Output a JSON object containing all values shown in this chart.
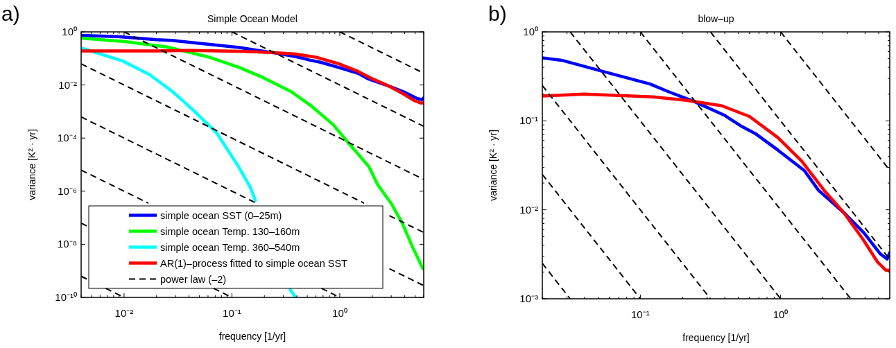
{
  "chart_data": [
    {
      "type": "line",
      "title": "Simple Ocean Model",
      "xlabel": "frequency [1/yr]",
      "ylabel": "variance [K² · yr]",
      "annotations": [
        "a)"
      ],
      "log": "xy",
      "legend": "bottom left",
      "xlim": [
        0.004,
        6
      ],
      "ylim": [
        1e-10,
        1
      ],
      "xticks": [
        {
          "value": 0.004,
          "label": null
        },
        {
          "value": 0.005,
          "label": null
        },
        {
          "value": 0.006,
          "label": null
        },
        {
          "value": 0.007,
          "label": null
        },
        {
          "value": 0.008,
          "label": null
        },
        {
          "value": 0.009,
          "label": null
        },
        {
          "value": 0.01,
          "label": "10⁻²"
        },
        {
          "value": 0.02,
          "label": null
        },
        {
          "value": 0.03,
          "label": null
        },
        {
          "value": 0.04,
          "label": null
        },
        {
          "value": 0.05,
          "label": null
        },
        {
          "value": 0.06,
          "label": null
        },
        {
          "value": 0.07,
          "label": null
        },
        {
          "value": 0.08,
          "label": null
        },
        {
          "value": 0.09,
          "label": null
        },
        {
          "value": 0.1,
          "label": "10⁻¹"
        },
        {
          "value": 0.2,
          "label": null
        },
        {
          "value": 0.3,
          "label": null
        },
        {
          "value": 0.4,
          "label": null
        },
        {
          "value": 0.5,
          "label": null
        },
        {
          "value": 0.6,
          "label": null
        },
        {
          "value": 0.7,
          "label": null
        },
        {
          "value": 0.8,
          "label": null
        },
        {
          "value": 0.9,
          "label": null
        },
        {
          "value": 1,
          "label": "10⁰"
        },
        {
          "value": 2,
          "label": null
        },
        {
          "value": 3,
          "label": null
        },
        {
          "value": 4,
          "label": null
        },
        {
          "value": 5,
          "label": null
        },
        {
          "value": 6,
          "label": null
        }
      ],
      "yticks": [
        {
          "value": 1e-10,
          "label": "10⁻¹⁰"
        },
        {
          "value": 1e-08,
          "label": "10⁻⁸"
        },
        {
          "value": 1e-06,
          "label": "10⁻⁶"
        },
        {
          "value": 0.0001,
          "label": "10⁻⁴"
        },
        {
          "value": 0.01,
          "label": "10⁻²"
        },
        {
          "value": 1,
          "label": "10⁰"
        }
      ],
      "series": [
        {
          "name": "simple ocean SST (0–25m)",
          "color": "#0000ff",
          "x": [
            0.004,
            0.0091,
            0.02,
            0.0275,
            0.0537,
            0.117,
            0.162,
            0.24,
            0.4,
            0.525,
            0.66,
            0.955,
            1.48,
            1.86,
            2.82,
            3.89,
            5.13,
            5.75,
            6
          ],
          "values": [
            0.74,
            0.66,
            0.51,
            0.48,
            0.36,
            0.26,
            0.21,
            0.166,
            0.115,
            0.087,
            0.072,
            0.047,
            0.0275,
            0.0166,
            0.0093,
            0.0056,
            0.0032,
            0.0028,
            0.0033
          ]
        },
        {
          "name": "simple ocean Temp. 130–160m",
          "color": "#00ff00",
          "x": [
            0.004,
            0.0102,
            0.025,
            0.06,
            0.115,
            0.195,
            0.355,
            0.537,
            0.87,
            1.23,
            1.86,
            2.24,
            3.02,
            3.8,
            4.79,
            5.9
          ],
          "values": [
            0.58,
            0.43,
            0.27,
            0.115,
            0.047,
            0.019,
            0.0056,
            0.0017,
            0.00032,
            5.9e-05,
            8.5e-06,
            1.8e-06,
            3.3e-07,
            6.2e-08,
            7.1e-09,
            1.2e-09
          ]
        },
        {
          "name": "simple ocean Temp. 360–540m",
          "color": "#00ffff",
          "x": [
            0.004,
            0.0098,
            0.0174,
            0.0282,
            0.0447,
            0.0724,
            0.115,
            0.148,
            0.165,
            0.25,
            0.347,
            0.39
          ],
          "values": [
            0.25,
            0.079,
            0.024,
            0.0056,
            0.00105,
            0.000155,
            8.5e-06,
            1.4e-06,
            4.5e-07,
            null,
            1.95e-10,
            1e-10
          ]
        },
        {
          "name": "AR(1)–process fitted to simple ocean SST",
          "color": "#ff0000",
          "x": [
            0.004,
            0.01,
            0.02,
            0.04,
            0.123,
            0.214,
            0.38,
            0.6,
            0.955,
            1.41,
            2.04,
            2.82,
            3.89,
            4.9,
            5.62,
            6
          ],
          "values": [
            0.19,
            0.19,
            0.19,
            0.2,
            0.186,
            0.17,
            0.148,
            0.112,
            0.065,
            0.0355,
            0.0166,
            0.0093,
            0.0046,
            0.0026,
            0.0021,
            0.0021
          ]
        },
        {
          "name": "power law (–2)",
          "color": "#000000",
          "line_style": "dashed",
          "x": [
            1,
            6
          ],
          "values": [
            1,
            0.0278
          ]
        },
        {
          "color": "#000000",
          "line_style": "dashed",
          "x": [
            0.1,
            6
          ],
          "values": [
            1,
            0.000278
          ]
        },
        {
          "color": "#000000",
          "line_style": "dashed",
          "x": [
            0.01,
            6
          ],
          "values": [
            1,
            2.78e-06
          ]
        },
        {
          "color": "#000000",
          "line_style": "dashed",
          "x": [
            0.004,
            1.68,
            2.3,
            2.884,
            6
          ],
          "values": [
            0.0625,
            3.55e-07,
            null,
            1.2e-07,
            2.78e-08
          ]
        },
        {
          "color": "#000000",
          "line_style": "dashed",
          "x": [
            0.004,
            0.168,
            1,
            2.884,
            6
          ],
          "values": [
            0.000625,
            3.55e-07,
            null,
            1.2e-09,
            2.78e-10
          ]
        },
        {
          "color": "#000000",
          "line_style": "dashed",
          "x": [
            0.004,
            0.0168,
            0.2,
            0.676,
            1
          ],
          "values": [
            6.25e-06,
            3.55e-07,
            null,
            2.19e-10,
            1e-10
          ]
        },
        {
          "color": "#000000",
          "line_style": "dashed",
          "x": [
            0.004,
            0.0048,
            0.02,
            0.0676,
            0.1
          ],
          "values": [
            6.25e-08,
            4.34e-08,
            null,
            2.19e-10,
            1e-10
          ]
        },
        {
          "color": "#000000",
          "line_style": "dashed",
          "x": [
            0.004,
            0.0048,
            0.0055,
            0.00676,
            0.01
          ],
          "values": [
            6.25e-10,
            4.34e-10,
            null,
            2.19e-10,
            1e-10
          ]
        }
      ]
    },
    {
      "type": "line",
      "title": "blow–up",
      "xlabel": "frequency [1/yr]",
      "ylabel": "variance [K² · yr]",
      "annotations": [
        "b)"
      ],
      "log": "xy",
      "xlim": [
        0.02,
        6
      ],
      "ylim": [
        0.001,
        1
      ],
      "xticks": [
        {
          "value": 0.02,
          "label": null
        },
        {
          "value": 0.03,
          "label": null
        },
        {
          "value": 0.04,
          "label": null
        },
        {
          "value": 0.05,
          "label": null
        },
        {
          "value": 0.06,
          "label": null
        },
        {
          "value": 0.07,
          "label": null
        },
        {
          "value": 0.08,
          "label": null
        },
        {
          "value": 0.09,
          "label": null
        },
        {
          "value": 0.1,
          "label": "10⁻¹"
        },
        {
          "value": 0.2,
          "label": null
        },
        {
          "value": 0.3,
          "label": null
        },
        {
          "value": 0.4,
          "label": null
        },
        {
          "value": 0.5,
          "label": null
        },
        {
          "value": 0.6,
          "label": null
        },
        {
          "value": 0.7,
          "label": null
        },
        {
          "value": 0.8,
          "label": null
        },
        {
          "value": 0.9,
          "label": null
        },
        {
          "value": 1,
          "label": "10⁰"
        },
        {
          "value": 2,
          "label": null
        },
        {
          "value": 3,
          "label": null
        },
        {
          "value": 4,
          "label": null
        },
        {
          "value": 5,
          "label": null
        },
        {
          "value": 6,
          "label": null
        }
      ],
      "yticks": [
        {
          "value": 0.001,
          "label": "10⁻³"
        },
        {
          "value": 0.002,
          "label": null
        },
        {
          "value": 0.003,
          "label": null
        },
        {
          "value": 0.004,
          "label": null
        },
        {
          "value": 0.005,
          "label": null
        },
        {
          "value": 0.006,
          "label": null
        },
        {
          "value": 0.007,
          "label": null
        },
        {
          "value": 0.008,
          "label": null
        },
        {
          "value": 0.009,
          "label": null
        },
        {
          "value": 0.01,
          "label": "10⁻²"
        },
        {
          "value": 0.02,
          "label": null
        },
        {
          "value": 0.03,
          "label": null
        },
        {
          "value": 0.04,
          "label": null
        },
        {
          "value": 0.05,
          "label": null
        },
        {
          "value": 0.06,
          "label": null
        },
        {
          "value": 0.07,
          "label": null
        },
        {
          "value": 0.08,
          "label": null
        },
        {
          "value": 0.09,
          "label": null
        },
        {
          "value": 0.1,
          "label": "10⁻¹"
        },
        {
          "value": 0.2,
          "label": null
        },
        {
          "value": 0.3,
          "label": null
        },
        {
          "value": 0.4,
          "label": null
        },
        {
          "value": 0.5,
          "label": null
        },
        {
          "value": 0.6,
          "label": null
        },
        {
          "value": 0.7,
          "label": null
        },
        {
          "value": 0.8,
          "label": null
        },
        {
          "value": 0.9,
          "label": null
        },
        {
          "value": 1,
          "label": "10⁰"
        }
      ],
      "series": [
        {
          "color": "#0000ff",
          "x": [
            0.02,
            0.0275,
            0.0537,
            0.117,
            0.162,
            0.24,
            0.4,
            0.525,
            0.66,
            0.955,
            1.48,
            1.86,
            2.82,
            3.89,
            5.13,
            5.75,
            6
          ],
          "values": [
            0.51,
            0.48,
            0.36,
            0.26,
            0.21,
            0.166,
            0.115,
            0.087,
            0.072,
            0.047,
            0.0275,
            0.0166,
            0.0093,
            0.0056,
            0.0032,
            0.0028,
            0.0033
          ]
        },
        {
          "color": "#ff0000",
          "x": [
            0.02,
            0.04,
            0.123,
            0.214,
            0.38,
            0.6,
            0.955,
            1.41,
            2.04,
            2.82,
            3.89,
            4.9,
            5.62,
            6
          ],
          "values": [
            0.19,
            0.2,
            0.186,
            0.17,
            0.148,
            0.112,
            0.065,
            0.0355,
            0.0166,
            0.0093,
            0.0046,
            0.0026,
            0.0021,
            0.0021
          ]
        },
        {
          "color": "#000000",
          "line_style": "dashed",
          "x": [
            1,
            6
          ],
          "values": [
            1,
            0.0278
          ]
        },
        {
          "color": "#000000",
          "line_style": "dashed",
          "x": [
            0.316,
            6
          ],
          "values": [
            1,
            0.00278
          ]
        },
        {
          "color": "#000000",
          "line_style": "dashed",
          "x": [
            0.1,
            3.162
          ],
          "values": [
            1,
            0.001
          ]
        },
        {
          "color": "#000000",
          "line_style": "dashed",
          "x": [
            0.0316,
            1
          ],
          "values": [
            1,
            0.001
          ]
        },
        {
          "color": "#000000",
          "line_style": "dashed",
          "x": [
            0.02,
            0.316
          ],
          "values": [
            0.25,
            0.001
          ]
        },
        {
          "color": "#000000",
          "line_style": "dashed",
          "x": [
            0.02,
            0.1
          ],
          "values": [
            0.025,
            0.001
          ]
        },
        {
          "color": "#000000",
          "line_style": "dashed",
          "x": [
            0.02,
            0.0316
          ],
          "values": [
            0.0025,
            0.001
          ]
        }
      ]
    }
  ]
}
